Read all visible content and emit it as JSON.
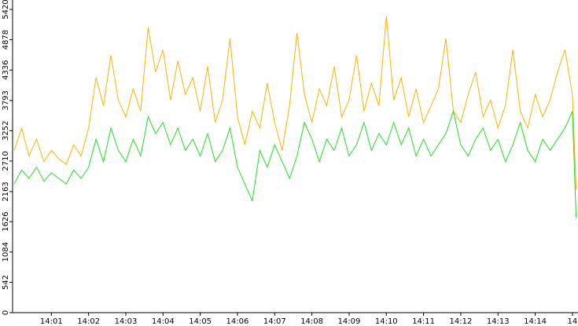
{
  "chart_data": {
    "type": "line",
    "x": [
      0,
      0.2,
      0.4,
      0.6,
      0.8,
      1,
      1.2,
      1.4,
      1.6,
      1.8,
      2,
      2.2,
      2.4,
      2.6,
      2.8,
      3,
      3.2,
      3.4,
      3.6,
      3.8,
      4,
      4.2,
      4.4,
      4.6,
      4.8,
      5,
      5.2,
      5.4,
      5.6,
      5.8,
      6,
      6.2,
      6.4,
      6.6,
      6.8,
      7,
      7.2,
      7.4,
      7.6,
      7.8,
      8,
      8.2,
      8.4,
      8.6,
      8.8,
      9,
      9.2,
      9.4,
      9.6,
      9.8,
      10,
      10.2,
      10.4,
      10.6,
      10.8,
      11,
      11.2,
      11.4,
      11.6,
      11.8,
      12,
      12.2,
      12.4,
      12.6,
      12.8,
      13,
      13.2,
      13.4,
      13.6,
      13.8,
      14,
      14.2,
      14.4,
      14.6,
      14.8,
      15,
      15.1
    ],
    "series": [
      {
        "color": "#f5b400",
        "values": [
          2900,
          3300,
          2800,
          3100,
          2700,
          2900,
          2750,
          2650,
          3000,
          2800,
          3300,
          4200,
          3700,
          4600,
          3800,
          3500,
          4000,
          3600,
          5100,
          4300,
          4700,
          3800,
          4500,
          3900,
          4200,
          3600,
          4400,
          3400,
          3800,
          4900,
          3500,
          3000,
          3600,
          3300,
          4100,
          3400,
          2900,
          3700,
          5000,
          3900,
          3400,
          4000,
          3700,
          4400,
          3500,
          3800,
          4600,
          3600,
          4100,
          3700,
          5300,
          3800,
          4200,
          3500,
          4000,
          3400,
          3700,
          4000,
          4900,
          3600,
          3400,
          3900,
          4300,
          3500,
          3800,
          3300,
          3700,
          4700,
          3600,
          3300,
          3900,
          3500,
          3800,
          4300,
          4700,
          3900,
          2200
        ]
      },
      {
        "color": "#22dd22",
        "values": [
          2300,
          2550,
          2400,
          2600,
          2350,
          2500,
          2400,
          2300,
          2550,
          2400,
          2600,
          3100,
          2700,
          3300,
          2900,
          2700,
          3100,
          2800,
          3500,
          3200,
          3400,
          3000,
          3300,
          2900,
          3100,
          2800,
          3200,
          2700,
          2900,
          3300,
          2600,
          2300,
          2000,
          2900,
          2600,
          3000,
          2700,
          2400,
          2800,
          3400,
          3100,
          2700,
          3100,
          2900,
          3300,
          2800,
          3000,
          3400,
          2900,
          3200,
          3000,
          3400,
          3000,
          3300,
          2800,
          3100,
          2800,
          3000,
          3200,
          3600,
          3000,
          2800,
          3100,
          3300,
          2900,
          3100,
          2700,
          3000,
          3400,
          2900,
          2700,
          3100,
          2900,
          3100,
          3300,
          3600,
          1700
        ]
      }
    ],
    "xlim": [
      0,
      15.15
    ],
    "xticks": [
      {
        "value": 1,
        "label": "14:01"
      },
      {
        "value": 2,
        "label": "14:02"
      },
      {
        "value": 3,
        "label": "14:03"
      },
      {
        "value": 4,
        "label": "14:04"
      },
      {
        "value": 5,
        "label": "14:05"
      },
      {
        "value": 6,
        "label": "14:06"
      },
      {
        "value": 7,
        "label": "14:07"
      },
      {
        "value": 8,
        "label": "14:08"
      },
      {
        "value": 9,
        "label": "14:09"
      },
      {
        "value": 10,
        "label": "14:10"
      },
      {
        "value": 11,
        "label": "14:11"
      },
      {
        "value": 12,
        "label": "14:12"
      },
      {
        "value": 13,
        "label": "14:13"
      },
      {
        "value": 14,
        "label": "14:14"
      },
      {
        "value": 15,
        "label": "14"
      }
    ],
    "ylim": [
      0,
      5420
    ],
    "yticks": [
      0,
      542,
      1084,
      1626,
      2163,
      2710,
      3252,
      3793,
      4336,
      4878,
      5420
    ]
  }
}
